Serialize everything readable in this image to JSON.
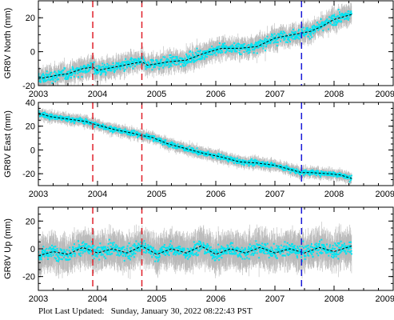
{
  "colors": {
    "points": "#00e5f2",
    "errorbars": "#b9b9b9",
    "model": "#000000",
    "event_red": "#e0202a",
    "event_blue": "#1a1ad8"
  },
  "footer": {
    "label": "Plot Last Updated:",
    "value": "Sunday, January 30, 2022 08:22:43 PST"
  },
  "chart_data": [
    {
      "type": "scatter",
      "ylabel": "GR8V North (mm)",
      "xlim": [
        2003,
        2009
      ],
      "ylim": [
        -20,
        30
      ],
      "xticks": [
        2003,
        2004,
        2005,
        2006,
        2007,
        2008,
        2009
      ],
      "yticks": [
        -20,
        0,
        20
      ],
      "events": [
        {
          "x": 2003.92,
          "color": "event_red"
        },
        {
          "x": 2004.75,
          "color": "event_red"
        },
        {
          "x": 2007.45,
          "color": "event_blue"
        }
      ],
      "trend": [
        [
          2003.0,
          -16
        ],
        [
          2003.3,
          -14
        ],
        [
          2003.5,
          -13
        ],
        [
          2003.75,
          -10
        ],
        [
          2003.92,
          -9
        ],
        [
          2004.0,
          -11
        ],
        [
          2004.3,
          -9
        ],
        [
          2004.6,
          -7
        ],
        [
          2004.75,
          -6
        ],
        [
          2004.85,
          -8
        ],
        [
          2005.2,
          -6
        ],
        [
          2005.5,
          -5
        ],
        [
          2005.8,
          -1
        ],
        [
          2006.1,
          2
        ],
        [
          2006.4,
          2
        ],
        [
          2006.7,
          3
        ],
        [
          2007.0,
          8
        ],
        [
          2007.3,
          10
        ],
        [
          2007.45,
          11
        ],
        [
          2007.6,
          12
        ],
        [
          2007.8,
          15
        ],
        [
          2008.0,
          19
        ],
        [
          2008.3,
          22
        ]
      ],
      "scatter": 6,
      "errorbar": 5
    },
    {
      "type": "scatter",
      "ylabel": "GR8V East (mm)",
      "xlim": [
        2003,
        2009
      ],
      "ylim": [
        -30,
        40
      ],
      "xticks": [
        2003,
        2004,
        2005,
        2006,
        2007,
        2008,
        2009
      ],
      "yticks": [
        -20,
        0,
        20,
        40
      ],
      "events": [
        {
          "x": 2003.92,
          "color": "event_red"
        },
        {
          "x": 2004.75,
          "color": "event_red"
        },
        {
          "x": 2007.45,
          "color": "event_blue"
        }
      ],
      "trend": [
        [
          2003.0,
          31
        ],
        [
          2003.2,
          28
        ],
        [
          2003.5,
          26
        ],
        [
          2003.8,
          24
        ],
        [
          2003.92,
          22
        ],
        [
          2004.3,
          17
        ],
        [
          2004.6,
          14
        ],
        [
          2004.75,
          12
        ],
        [
          2004.9,
          11
        ],
        [
          2005.2,
          5
        ],
        [
          2005.5,
          1
        ],
        [
          2005.8,
          -3
        ],
        [
          2006.1,
          -6
        ],
        [
          2006.4,
          -10
        ],
        [
          2006.7,
          -11
        ],
        [
          2007.0,
          -13
        ],
        [
          2007.3,
          -17
        ],
        [
          2007.45,
          -19
        ],
        [
          2007.6,
          -19
        ],
        [
          2007.9,
          -20
        ],
        [
          2008.1,
          -21
        ],
        [
          2008.3,
          -24
        ]
      ],
      "scatter": 4,
      "errorbar": 4
    },
    {
      "type": "scatter",
      "ylabel": "GR8V Up (mm)",
      "xlim": [
        2003,
        2009
      ],
      "ylim": [
        -30,
        30
      ],
      "xticks": [
        2003,
        2004,
        2005,
        2006,
        2007,
        2008,
        2009
      ],
      "yticks": [
        -20,
        0,
        20
      ],
      "events": [
        {
          "x": 2003.92,
          "color": "event_red"
        },
        {
          "x": 2004.75,
          "color": "event_red"
        },
        {
          "x": 2007.45,
          "color": "event_blue"
        }
      ],
      "trend": [
        [
          2003.0,
          -5
        ],
        [
          2003.25,
          -2
        ],
        [
          2003.5,
          -4
        ],
        [
          2003.75,
          1
        ],
        [
          2004.0,
          -3
        ],
        [
          2004.25,
          0
        ],
        [
          2004.5,
          -3
        ],
        [
          2004.75,
          2
        ],
        [
          2005.0,
          -4
        ],
        [
          2005.25,
          0
        ],
        [
          2005.5,
          -3
        ],
        [
          2005.75,
          2
        ],
        [
          2006.0,
          -4
        ],
        [
          2006.25,
          0
        ],
        [
          2006.5,
          -3
        ],
        [
          2006.75,
          1
        ],
        [
          2007.0,
          -3
        ],
        [
          2007.25,
          0
        ],
        [
          2007.5,
          -3
        ],
        [
          2007.75,
          1
        ],
        [
          2008.0,
          -2
        ],
        [
          2008.3,
          2
        ]
      ],
      "scatter": 9,
      "errorbar": 11
    }
  ]
}
